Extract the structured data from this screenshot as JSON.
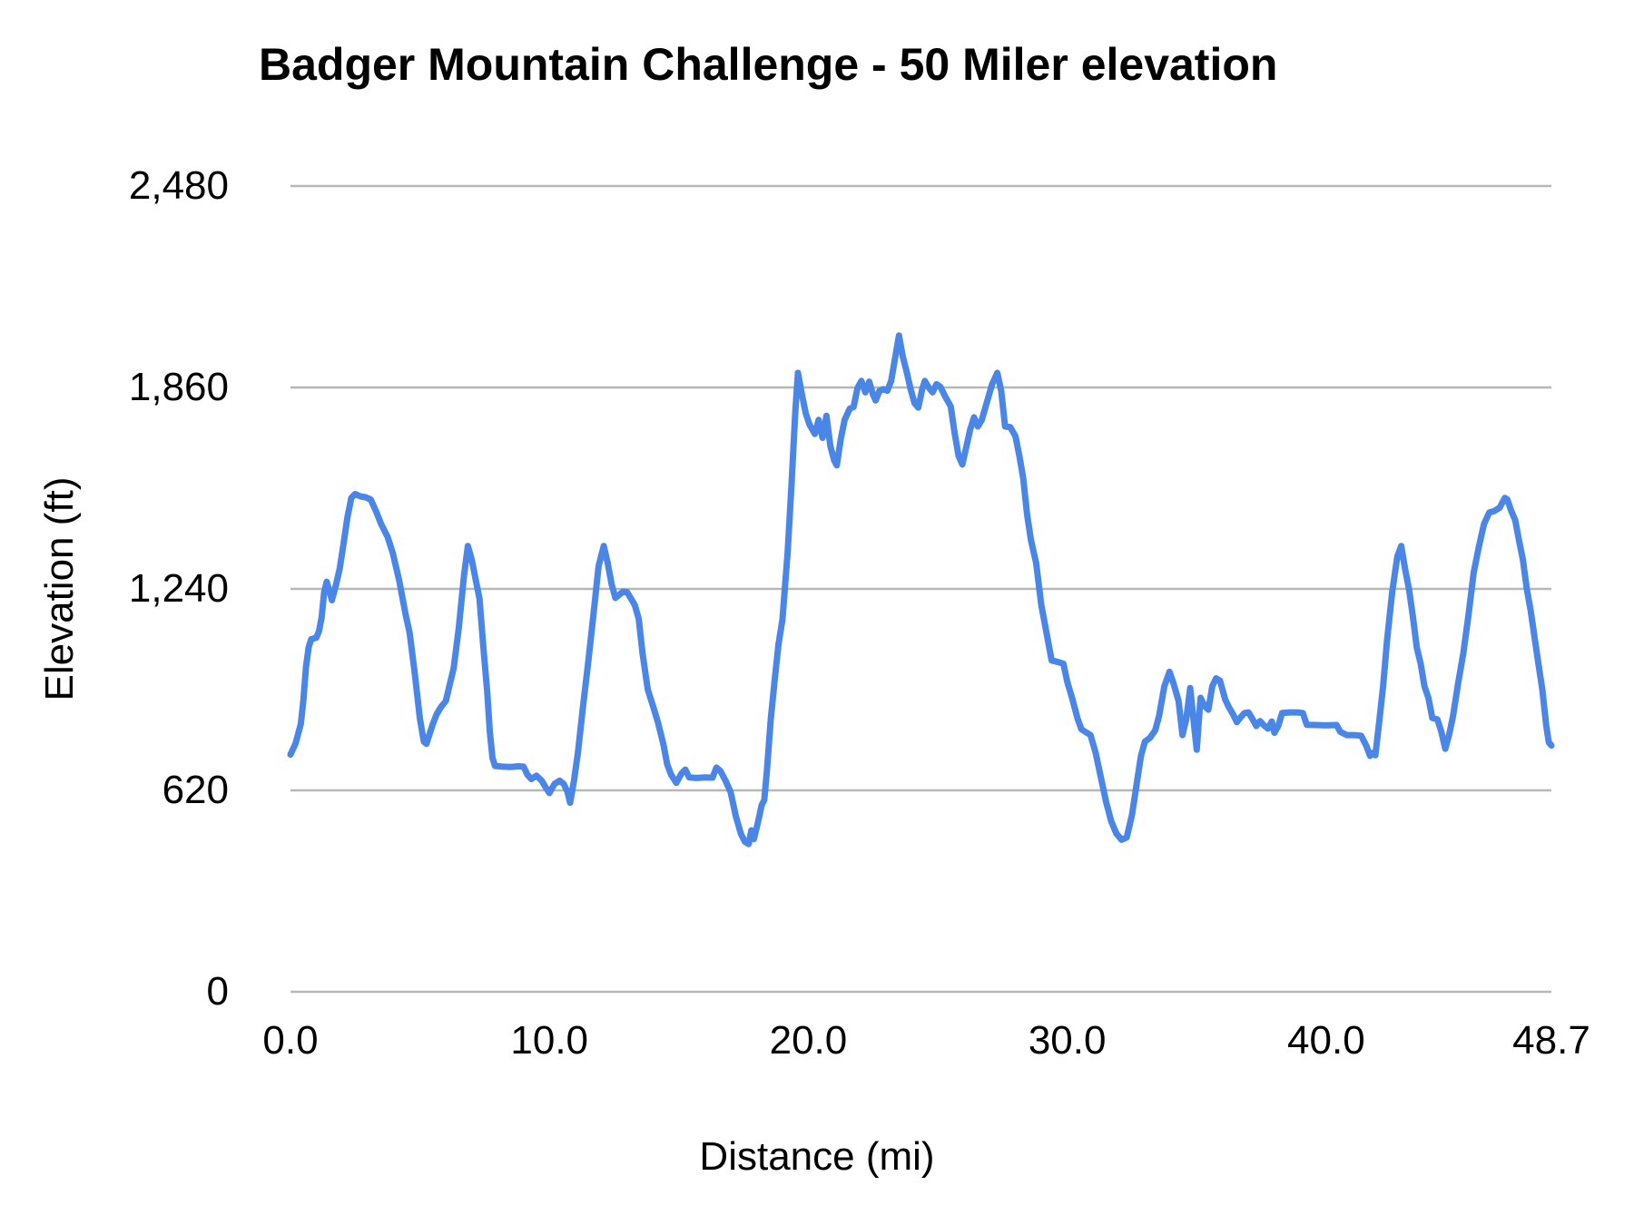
{
  "chart": {
    "title": "Badger Mountain Challenge - 50 Miler elevation",
    "x_axis_title": "Distance (mi)",
    "y_axis_title": "Elevation (ft)"
  },
  "styles": {
    "line_color": "#4a86e8",
    "gridline_color": "#b7b7b7",
    "text_color": "#000000",
    "background": "#ffffff"
  },
  "chart_data": {
    "type": "line",
    "title": "Badger Mountain Challenge - 50 Miler elevation",
    "xlabel": "Distance (mi)",
    "ylabel": "Elevation (ft)",
    "xlim": [
      0,
      48.7
    ],
    "ylim": [
      0,
      2480
    ],
    "grid": "horizontal-only",
    "legend": "none",
    "xticks": [
      {
        "value": 0,
        "label": "0.0"
      },
      {
        "value": 10,
        "label": "10.0"
      },
      {
        "value": 20,
        "label": "20.0"
      },
      {
        "value": 30,
        "label": "30.0"
      },
      {
        "value": 40,
        "label": "40.0"
      },
      {
        "value": 48.7,
        "label": "48.7"
      }
    ],
    "yticks": [
      {
        "value": 0,
        "label": "0"
      },
      {
        "value": 620,
        "label": "620"
      },
      {
        "value": 1240,
        "label": "1,240"
      },
      {
        "value": 1860,
        "label": "1,860"
      },
      {
        "value": 2480,
        "label": "2,480"
      }
    ],
    "series": [
      {
        "name": "Elevation (ft)",
        "points": [
          [
            0.0,
            730
          ],
          [
            0.2,
            765
          ],
          [
            0.4,
            825
          ],
          [
            0.5,
            900
          ],
          [
            0.6,
            1000
          ],
          [
            0.7,
            1060
          ],
          [
            0.8,
            1085
          ],
          [
            1.0,
            1090
          ],
          [
            1.1,
            1110
          ],
          [
            1.2,
            1150
          ],
          [
            1.3,
            1230
          ],
          [
            1.4,
            1262
          ],
          [
            1.5,
            1235
          ],
          [
            1.6,
            1205
          ],
          [
            1.75,
            1250
          ],
          [
            1.9,
            1302
          ],
          [
            2.05,
            1380
          ],
          [
            2.2,
            1460
          ],
          [
            2.35,
            1520
          ],
          [
            2.5,
            1532
          ],
          [
            2.7,
            1525
          ],
          [
            2.9,
            1522
          ],
          [
            3.1,
            1515
          ],
          [
            3.3,
            1480
          ],
          [
            3.5,
            1440
          ],
          [
            3.75,
            1400
          ],
          [
            3.95,
            1350
          ],
          [
            4.2,
            1265
          ],
          [
            4.45,
            1160
          ],
          [
            4.6,
            1106
          ],
          [
            4.8,
            980
          ],
          [
            5.0,
            840
          ],
          [
            5.15,
            770
          ],
          [
            5.25,
            763
          ],
          [
            5.4,
            800
          ],
          [
            5.5,
            825
          ],
          [
            5.65,
            855
          ],
          [
            5.8,
            875
          ],
          [
            6.0,
            895
          ],
          [
            6.15,
            945
          ],
          [
            6.3,
            995
          ],
          [
            6.5,
            1120
          ],
          [
            6.7,
            1280
          ],
          [
            6.85,
            1372
          ],
          [
            7.0,
            1330
          ],
          [
            7.15,
            1270
          ],
          [
            7.3,
            1210
          ],
          [
            7.45,
            1060
          ],
          [
            7.6,
            920
          ],
          [
            7.7,
            800
          ],
          [
            7.8,
            720
          ],
          [
            7.9,
            695
          ],
          [
            8.2,
            693
          ],
          [
            8.5,
            692
          ],
          [
            8.8,
            694
          ],
          [
            9.0,
            693
          ],
          [
            9.15,
            668
          ],
          [
            9.3,
            655
          ],
          [
            9.5,
            665
          ],
          [
            9.7,
            650
          ],
          [
            9.85,
            630
          ],
          [
            10.0,
            612
          ],
          [
            10.2,
            640
          ],
          [
            10.4,
            650
          ],
          [
            10.55,
            640
          ],
          [
            10.7,
            615
          ],
          [
            10.8,
            582
          ],
          [
            10.95,
            650
          ],
          [
            11.1,
            735
          ],
          [
            11.3,
            880
          ],
          [
            11.5,
            1015
          ],
          [
            11.7,
            1160
          ],
          [
            11.9,
            1310
          ],
          [
            12.1,
            1372
          ],
          [
            12.25,
            1320
          ],
          [
            12.4,
            1255
          ],
          [
            12.55,
            1212
          ],
          [
            12.7,
            1222
          ],
          [
            12.85,
            1232
          ],
          [
            13.0,
            1230
          ],
          [
            13.15,
            1210
          ],
          [
            13.3,
            1190
          ],
          [
            13.45,
            1148
          ],
          [
            13.6,
            1040
          ],
          [
            13.8,
            930
          ],
          [
            14.0,
            880
          ],
          [
            14.2,
            827
          ],
          [
            14.4,
            763
          ],
          [
            14.55,
            700
          ],
          [
            14.7,
            668
          ],
          [
            14.9,
            643
          ],
          [
            15.1,
            672
          ],
          [
            15.25,
            684
          ],
          [
            15.4,
            660
          ],
          [
            15.7,
            658
          ],
          [
            16.0,
            660
          ],
          [
            16.3,
            659
          ],
          [
            16.45,
            690
          ],
          [
            16.6,
            680
          ],
          [
            16.8,
            650
          ],
          [
            17.0,
            614
          ],
          [
            17.2,
            540
          ],
          [
            17.4,
            485
          ],
          [
            17.55,
            462
          ],
          [
            17.7,
            455
          ],
          [
            17.8,
            497
          ],
          [
            17.9,
            470
          ],
          [
            18.05,
            520
          ],
          [
            18.2,
            575
          ],
          [
            18.3,
            590
          ],
          [
            18.4,
            680
          ],
          [
            18.55,
            840
          ],
          [
            18.7,
            960
          ],
          [
            18.85,
            1070
          ],
          [
            19.0,
            1145
          ],
          [
            19.2,
            1350
          ],
          [
            19.35,
            1560
          ],
          [
            19.5,
            1790
          ],
          [
            19.6,
            1905
          ],
          [
            19.75,
            1840
          ],
          [
            19.9,
            1780
          ],
          [
            20.05,
            1745
          ],
          [
            20.25,
            1717
          ],
          [
            20.4,
            1760
          ],
          [
            20.55,
            1705
          ],
          [
            20.7,
            1773
          ],
          [
            20.85,
            1680
          ],
          [
            21.0,
            1635
          ],
          [
            21.1,
            1620
          ],
          [
            21.25,
            1700
          ],
          [
            21.4,
            1760
          ],
          [
            21.6,
            1795
          ],
          [
            21.75,
            1800
          ],
          [
            21.9,
            1858
          ],
          [
            22.05,
            1880
          ],
          [
            22.2,
            1845
          ],
          [
            22.35,
            1878
          ],
          [
            22.5,
            1838
          ],
          [
            22.6,
            1820
          ],
          [
            22.75,
            1850
          ],
          [
            22.9,
            1855
          ],
          [
            23.05,
            1850
          ],
          [
            23.2,
            1880
          ],
          [
            23.35,
            1950
          ],
          [
            23.5,
            2020
          ],
          [
            23.65,
            1955
          ],
          [
            23.8,
            1908
          ],
          [
            23.95,
            1855
          ],
          [
            24.1,
            1812
          ],
          [
            24.25,
            1798
          ],
          [
            24.4,
            1855
          ],
          [
            24.5,
            1880
          ],
          [
            24.65,
            1860
          ],
          [
            24.8,
            1845
          ],
          [
            24.95,
            1870
          ],
          [
            25.1,
            1862
          ],
          [
            25.3,
            1830
          ],
          [
            25.5,
            1802
          ],
          [
            25.65,
            1720
          ],
          [
            25.8,
            1650
          ],
          [
            25.95,
            1623
          ],
          [
            26.1,
            1676
          ],
          [
            26.25,
            1730
          ],
          [
            26.4,
            1768
          ],
          [
            26.55,
            1740
          ],
          [
            26.7,
            1760
          ],
          [
            26.9,
            1815
          ],
          [
            27.1,
            1870
          ],
          [
            27.3,
            1905
          ],
          [
            27.45,
            1850
          ],
          [
            27.6,
            1740
          ],
          [
            27.8,
            1738
          ],
          [
            28.0,
            1710
          ],
          [
            28.15,
            1650
          ],
          [
            28.3,
            1580
          ],
          [
            28.45,
            1470
          ],
          [
            28.6,
            1390
          ],
          [
            28.8,
            1320
          ],
          [
            29.0,
            1190
          ],
          [
            29.2,
            1105
          ],
          [
            29.4,
            1020
          ],
          [
            29.65,
            1015
          ],
          [
            29.85,
            1010
          ],
          [
            30.0,
            955
          ],
          [
            30.2,
            900
          ],
          [
            30.4,
            840
          ],
          [
            30.55,
            808
          ],
          [
            30.7,
            800
          ],
          [
            30.9,
            790
          ],
          [
            31.1,
            735
          ],
          [
            31.3,
            660
          ],
          [
            31.5,
            585
          ],
          [
            31.7,
            525
          ],
          [
            31.9,
            487
          ],
          [
            32.1,
            468
          ],
          [
            32.3,
            475
          ],
          [
            32.5,
            545
          ],
          [
            32.7,
            650
          ],
          [
            32.85,
            726
          ],
          [
            33.0,
            770
          ],
          [
            33.2,
            782
          ],
          [
            33.4,
            805
          ],
          [
            33.55,
            850
          ],
          [
            33.75,
            940
          ],
          [
            33.95,
            985
          ],
          [
            34.1,
            950
          ],
          [
            34.3,
            895
          ],
          [
            34.45,
            790
          ],
          [
            34.6,
            840
          ],
          [
            34.75,
            935
          ],
          [
            34.9,
            820
          ],
          [
            35.0,
            745
          ],
          [
            35.15,
            905
          ],
          [
            35.3,
            880
          ],
          [
            35.45,
            868
          ],
          [
            35.6,
            940
          ],
          [
            35.75,
            965
          ],
          [
            35.9,
            958
          ],
          [
            36.1,
            900
          ],
          [
            36.25,
            875
          ],
          [
            36.4,
            855
          ],
          [
            36.55,
            830
          ],
          [
            36.7,
            845
          ],
          [
            36.85,
            858
          ],
          [
            37.0,
            860
          ],
          [
            37.15,
            840
          ],
          [
            37.3,
            818
          ],
          [
            37.45,
            833
          ],
          [
            37.6,
            820
          ],
          [
            37.75,
            810
          ],
          [
            37.9,
            832
          ],
          [
            38.0,
            797
          ],
          [
            38.15,
            818
          ],
          [
            38.3,
            858
          ],
          [
            38.6,
            860
          ],
          [
            38.9,
            860
          ],
          [
            39.1,
            858
          ],
          [
            39.25,
            822
          ],
          [
            39.6,
            821
          ],
          [
            40.0,
            820
          ],
          [
            40.4,
            821
          ],
          [
            40.55,
            800
          ],
          [
            40.8,
            790
          ],
          [
            41.1,
            790
          ],
          [
            41.35,
            788
          ],
          [
            41.55,
            757
          ],
          [
            41.7,
            726
          ],
          [
            41.8,
            735
          ],
          [
            41.9,
            728
          ],
          [
            42.05,
            830
          ],
          [
            42.2,
            940
          ],
          [
            42.35,
            1080
          ],
          [
            42.55,
            1230
          ],
          [
            42.75,
            1340
          ],
          [
            42.9,
            1372
          ],
          [
            43.05,
            1300
          ],
          [
            43.2,
            1240
          ],
          [
            43.35,
            1155
          ],
          [
            43.5,
            1060
          ],
          [
            43.65,
            1010
          ],
          [
            43.8,
            940
          ],
          [
            43.95,
            905
          ],
          [
            44.1,
            843
          ],
          [
            44.3,
            838
          ],
          [
            44.45,
            800
          ],
          [
            44.6,
            748
          ],
          [
            44.75,
            790
          ],
          [
            44.9,
            848
          ],
          [
            45.1,
            950
          ],
          [
            45.3,
            1042
          ],
          [
            45.5,
            1160
          ],
          [
            45.7,
            1290
          ],
          [
            45.9,
            1370
          ],
          [
            46.1,
            1440
          ],
          [
            46.3,
            1475
          ],
          [
            46.5,
            1480
          ],
          [
            46.7,
            1490
          ],
          [
            46.9,
            1520
          ],
          [
            47.0,
            1515
          ],
          [
            47.15,
            1480
          ],
          [
            47.3,
            1452
          ],
          [
            47.45,
            1390
          ],
          [
            47.6,
            1330
          ],
          [
            47.75,
            1240
          ],
          [
            47.9,
            1173
          ],
          [
            48.05,
            1090
          ],
          [
            48.2,
            1010
          ],
          [
            48.35,
            930
          ],
          [
            48.5,
            820
          ],
          [
            48.6,
            768
          ],
          [
            48.7,
            758
          ]
        ]
      }
    ]
  }
}
